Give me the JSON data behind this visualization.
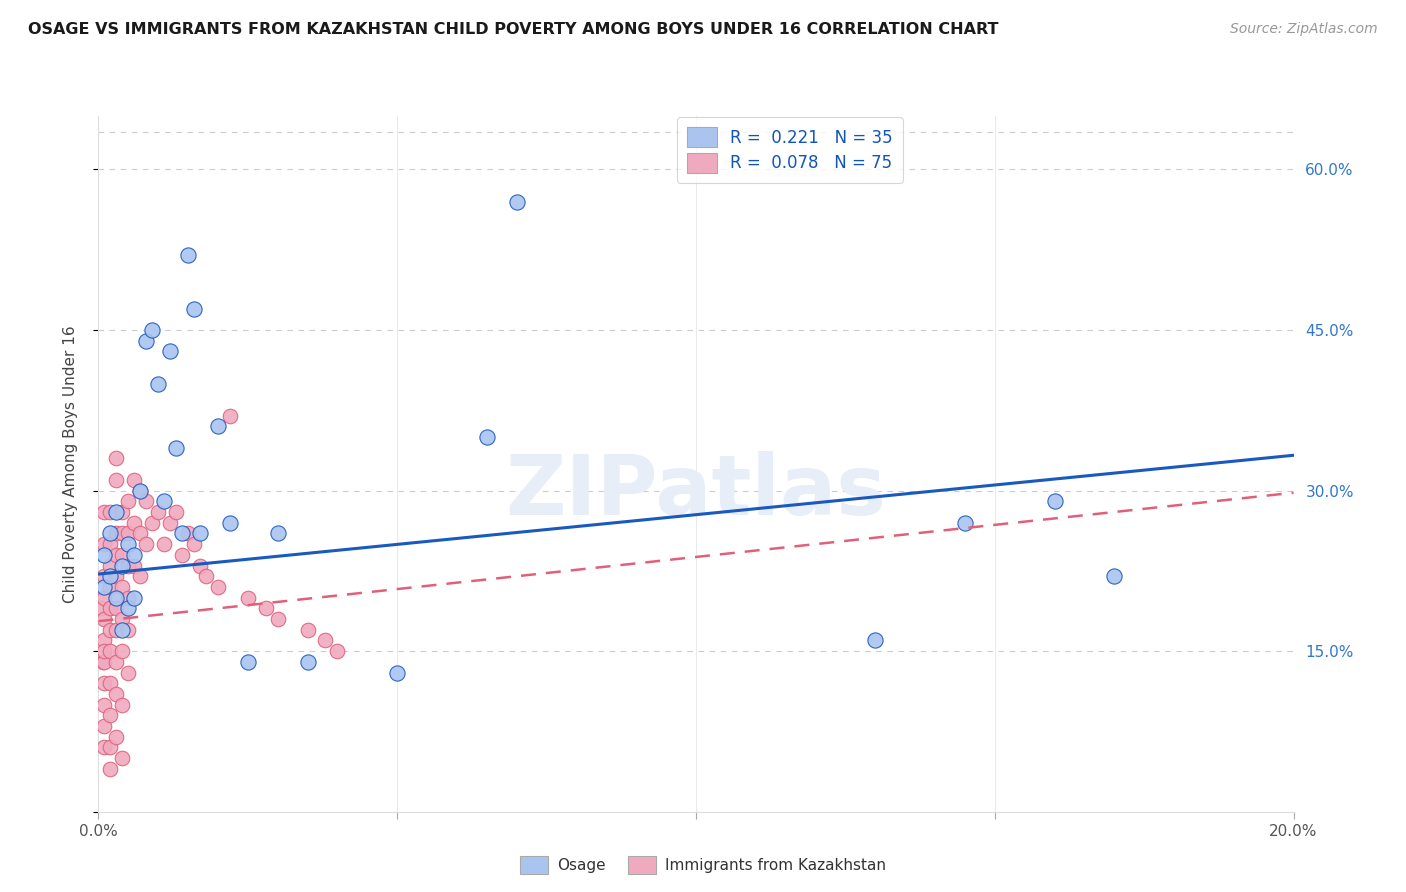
{
  "title": "OSAGE VS IMMIGRANTS FROM KAZAKHSTAN CHILD POVERTY AMONG BOYS UNDER 16 CORRELATION CHART",
  "source": "Source: ZipAtlas.com",
  "ylabel": "Child Poverty Among Boys Under 16",
  "xlim": [
    0.0,
    0.2
  ],
  "ylim": [
    0.0,
    0.65
  ],
  "legend_R_osage": "0.221",
  "legend_N_osage": "35",
  "legend_R_kaz": "0.078",
  "legend_N_kaz": "75",
  "osage_color": "#aac4f0",
  "kaz_color": "#f0aac0",
  "osage_line_color": "#1a5abf",
  "kaz_line_color": "#e0607a",
  "background_color": "#ffffff",
  "grid_color": "#cccccc",
  "osage_x": [
    0.001,
    0.001,
    0.002,
    0.002,
    0.003,
    0.003,
    0.004,
    0.004,
    0.005,
    0.005,
    0.006,
    0.006,
    0.007,
    0.008,
    0.009,
    0.01,
    0.011,
    0.012,
    0.013,
    0.014,
    0.015,
    0.016,
    0.017,
    0.02,
    0.022,
    0.025,
    0.03,
    0.035,
    0.05,
    0.065,
    0.07,
    0.13,
    0.145,
    0.16,
    0.17
  ],
  "osage_y": [
    0.21,
    0.24,
    0.22,
    0.26,
    0.2,
    0.28,
    0.23,
    0.17,
    0.25,
    0.19,
    0.24,
    0.2,
    0.3,
    0.44,
    0.45,
    0.4,
    0.29,
    0.43,
    0.34,
    0.26,
    0.52,
    0.47,
    0.26,
    0.36,
    0.27,
    0.14,
    0.26,
    0.14,
    0.13,
    0.35,
    0.57,
    0.16,
    0.27,
    0.29,
    0.22
  ],
  "kaz_x": [
    0.0005,
    0.0007,
    0.001,
    0.001,
    0.001,
    0.001,
    0.001,
    0.001,
    0.001,
    0.001,
    0.001,
    0.001,
    0.001,
    0.001,
    0.002,
    0.002,
    0.002,
    0.002,
    0.002,
    0.002,
    0.002,
    0.002,
    0.002,
    0.002,
    0.002,
    0.003,
    0.003,
    0.003,
    0.003,
    0.003,
    0.003,
    0.003,
    0.003,
    0.003,
    0.003,
    0.004,
    0.004,
    0.004,
    0.004,
    0.004,
    0.004,
    0.004,
    0.004,
    0.005,
    0.005,
    0.005,
    0.005,
    0.005,
    0.005,
    0.006,
    0.006,
    0.006,
    0.007,
    0.007,
    0.007,
    0.008,
    0.008,
    0.009,
    0.01,
    0.011,
    0.012,
    0.013,
    0.014,
    0.015,
    0.016,
    0.017,
    0.018,
    0.02,
    0.022,
    0.025,
    0.028,
    0.03,
    0.035,
    0.038,
    0.04
  ],
  "kaz_y": [
    0.19,
    0.14,
    0.22,
    0.2,
    0.18,
    0.16,
    0.14,
    0.12,
    0.1,
    0.08,
    0.06,
    0.15,
    0.25,
    0.28,
    0.23,
    0.21,
    0.19,
    0.17,
    0.15,
    0.12,
    0.09,
    0.06,
    0.04,
    0.25,
    0.28,
    0.26,
    0.24,
    0.22,
    0.19,
    0.17,
    0.14,
    0.11,
    0.07,
    0.31,
    0.33,
    0.28,
    0.26,
    0.24,
    0.21,
    0.18,
    0.15,
    0.1,
    0.05,
    0.29,
    0.26,
    0.23,
    0.2,
    0.17,
    0.13,
    0.31,
    0.27,
    0.23,
    0.3,
    0.26,
    0.22,
    0.29,
    0.25,
    0.27,
    0.28,
    0.25,
    0.27,
    0.28,
    0.24,
    0.26,
    0.25,
    0.23,
    0.22,
    0.21,
    0.37,
    0.2,
    0.19,
    0.18,
    0.17,
    0.16,
    0.15
  ],
  "osage_line_x": [
    0.0,
    0.2
  ],
  "osage_line_y": [
    0.222,
    0.333
  ],
  "kaz_line_x": [
    0.0,
    0.2
  ],
  "kaz_line_y": [
    0.178,
    0.298
  ]
}
